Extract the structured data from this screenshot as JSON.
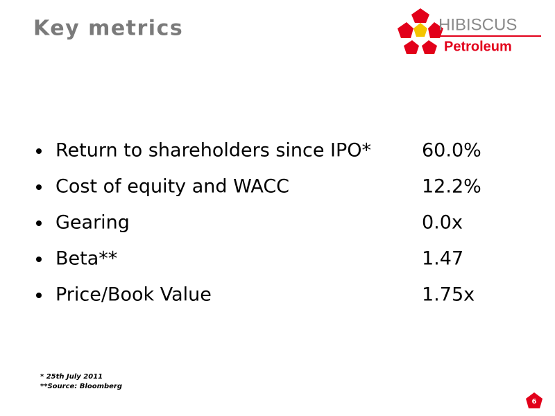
{
  "header": {
    "title": "Key metrics",
    "logo_name": "HIBISCUS",
    "logo_sub": "Petroleum"
  },
  "metrics": [
    {
      "label": "Return to shareholders since IPO*",
      "value": "60.0%"
    },
    {
      "label": "Cost of equity and WACC",
      "value": "12.2%"
    },
    {
      "label": "Gearing",
      "value": "0.0x"
    },
    {
      "label": "Beta**",
      "value": "1.47"
    },
    {
      "label": "Price/Book Value",
      "value": "1.75x"
    }
  ],
  "footnotes": [
    "* 25th July 2011",
    "**Source: Bloomberg"
  ],
  "page_number": "6"
}
